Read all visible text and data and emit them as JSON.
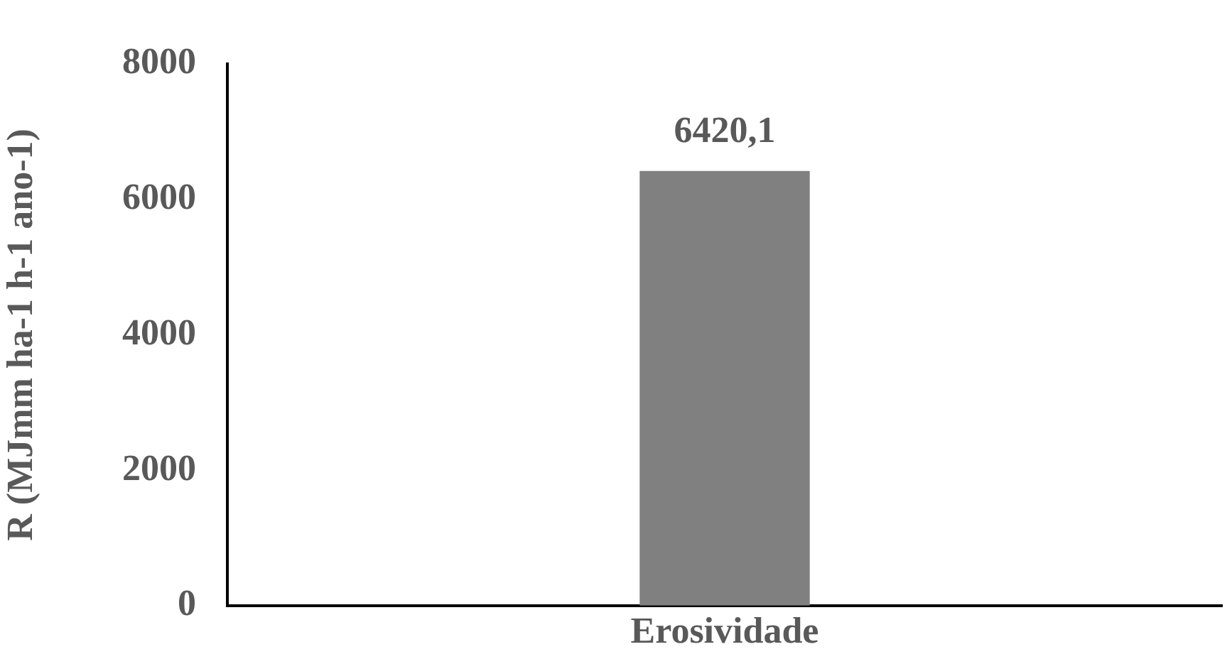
{
  "chart_data": {
    "type": "bar",
    "ylabel": "R (MJmm ha-1 h-1 ano-1)",
    "categories": [
      "Erosividade"
    ],
    "values": [
      6420.1
    ],
    "color": "#808080",
    "value_labels": [
      "6420,1"
    ],
    "ylim": [
      0,
      8000
    ],
    "yticks": [
      0,
      2000,
      4000,
      6000,
      8000
    ],
    "grid": false,
    "legend": false
  }
}
